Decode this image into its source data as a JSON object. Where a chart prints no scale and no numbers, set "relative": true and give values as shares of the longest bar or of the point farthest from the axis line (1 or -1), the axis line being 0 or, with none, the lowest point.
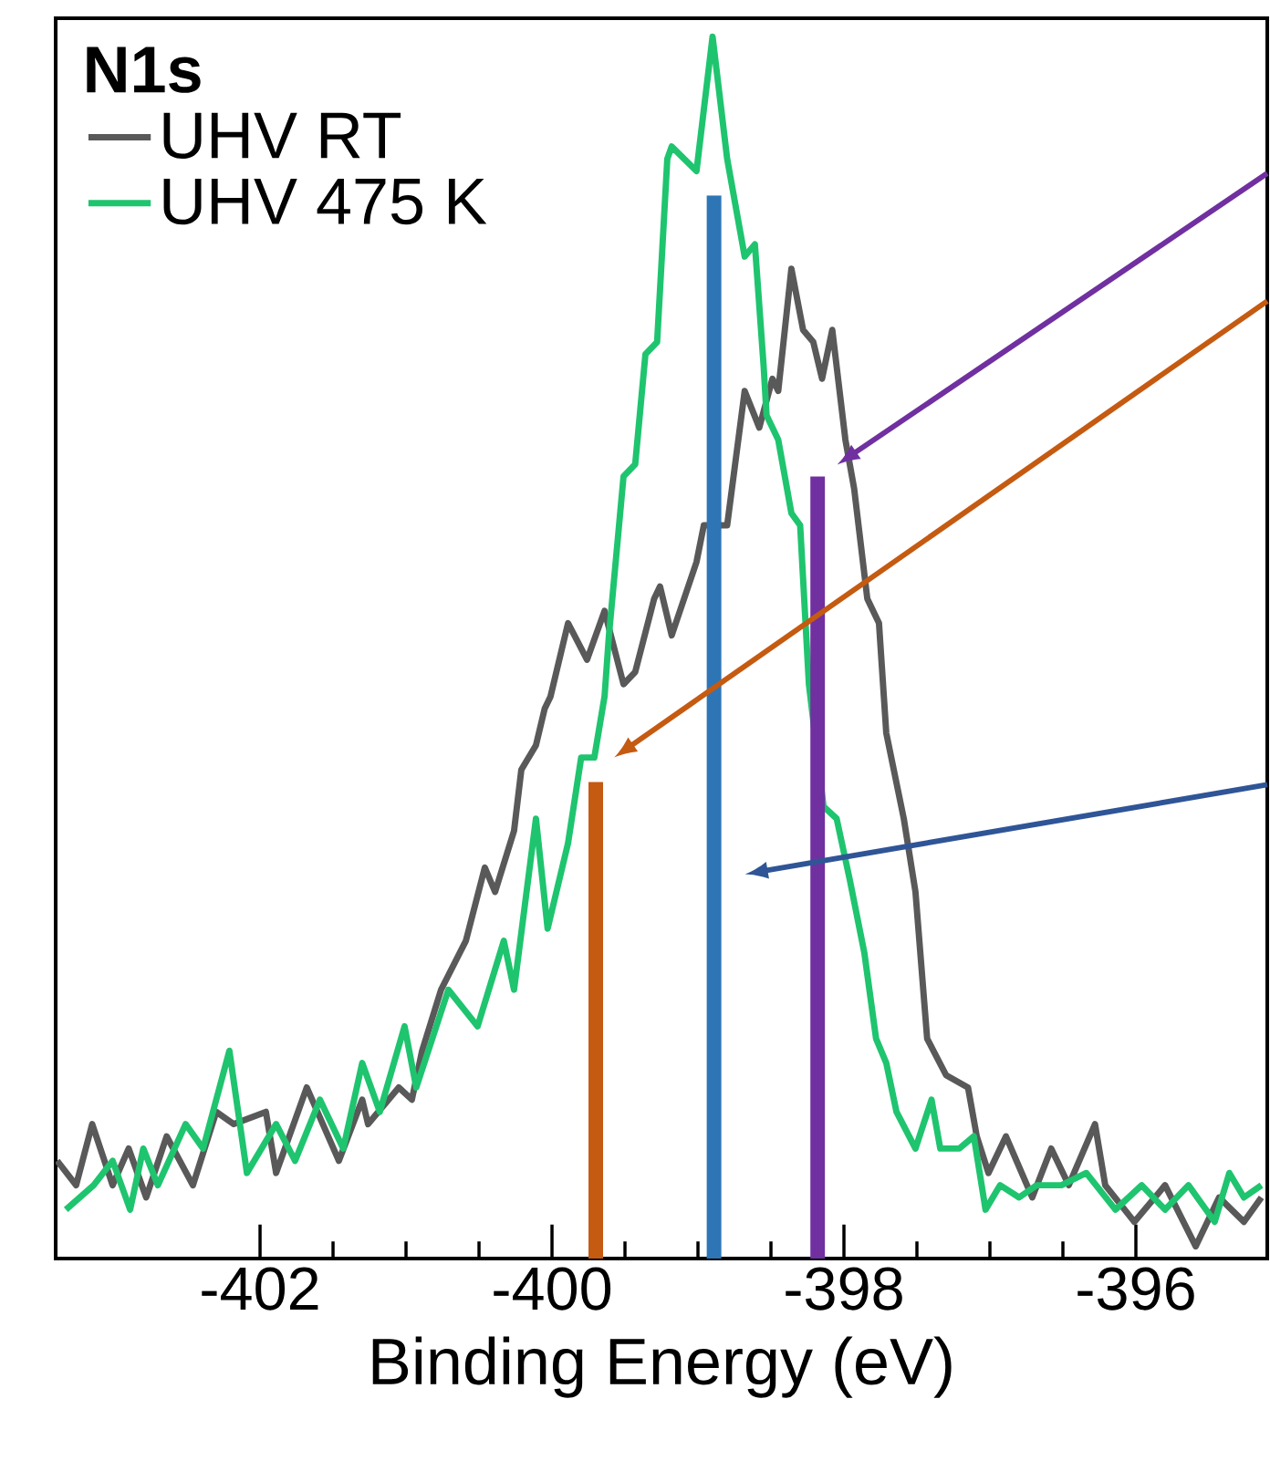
{
  "chart_data": {
    "type": "line",
    "relative": true,
    "xlabel": "Binding Energy (eV)",
    "legend_title": "N1s",
    "legend": "top left",
    "xlim": [
      -403.4,
      -395.1
    ],
    "xticks": [
      -402,
      -400,
      -398,
      -396
    ],
    "series": [
      {
        "name": "UHV RT",
        "color": "#595959",
        "x": [
          -403.39,
          -403.26,
          -403.15,
          -403.01,
          -402.9,
          -402.78,
          -402.64,
          -402.46,
          -402.3,
          -402.18,
          -401.96,
          -401.89,
          -401.68,
          -401.46,
          -401.3,
          -401.26,
          -401.05,
          -400.96,
          -400.89,
          -400.76,
          -400.59,
          -400.46,
          -400.39,
          -400.26,
          -400.21,
          -400.11,
          -400.05,
          -400.01,
          -399.89,
          -399.76,
          -399.64,
          -399.51,
          -399.43,
          -399.3,
          -399.26,
          -399.18,
          -399.01,
          -398.96,
          -398.8,
          -398.68,
          -398.58,
          -398.49,
          -398.45,
          -398.36,
          -398.28,
          -398.21,
          -398.15,
          -398.08,
          -397.99,
          -397.93,
          -397.84,
          -397.76,
          -397.71,
          -397.59,
          -397.51,
          -397.43,
          -397.3,
          -397.15,
          -397.09,
          -397.01,
          -396.89,
          -396.71,
          -396.58,
          -396.46,
          -396.28,
          -396.21,
          -396.01,
          -395.8,
          -395.59,
          -395.43,
          -395.26,
          -395.14
        ],
        "values": [
          0.08,
          0.06,
          0.11,
          0.06,
          0.09,
          0.05,
          0.1,
          0.06,
          0.12,
          0.11,
          0.12,
          0.07,
          0.14,
          0.08,
          0.13,
          0.11,
          0.14,
          0.13,
          0.17,
          0.22,
          0.26,
          0.32,
          0.3,
          0.35,
          0.4,
          0.42,
          0.45,
          0.46,
          0.52,
          0.49,
          0.53,
          0.47,
          0.48,
          0.54,
          0.55,
          0.51,
          0.57,
          0.6,
          0.6,
          0.71,
          0.68,
          0.72,
          0.71,
          0.81,
          0.76,
          0.75,
          0.72,
          0.76,
          0.67,
          0.63,
          0.54,
          0.52,
          0.43,
          0.36,
          0.3,
          0.18,
          0.15,
          0.14,
          0.1,
          0.07,
          0.1,
          0.05,
          0.09,
          0.06,
          0.11,
          0.06,
          0.03,
          0.06,
          0.01,
          0.05,
          0.03,
          0.05
        ]
      },
      {
        "name": "UHV 475 K",
        "color": "#1fc46f",
        "x": [
          -403.33,
          -403.14,
          -403.01,
          -402.89,
          -402.8,
          -402.7,
          -402.51,
          -402.39,
          -402.21,
          -402.09,
          -401.89,
          -401.76,
          -401.59,
          -401.43,
          -401.3,
          -401.18,
          -401.01,
          -400.93,
          -400.71,
          -400.51,
          -400.33,
          -400.26,
          -400.11,
          -400.03,
          -399.89,
          -399.8,
          -399.71,
          -399.64,
          -399.61,
          -399.51,
          -399.43,
          -399.36,
          -399.28,
          -399.21,
          -399.18,
          -399.01,
          -398.9,
          -398.8,
          -398.68,
          -398.61,
          -398.55,
          -398.53,
          -398.45,
          -398.36,
          -398.3,
          -398.24,
          -398.14,
          -398.05,
          -397.96,
          -397.86,
          -397.78,
          -397.71,
          -397.64,
          -397.51,
          -397.4,
          -397.34,
          -397.21,
          -397.11,
          -397.03,
          -396.93,
          -396.8,
          -396.68,
          -396.51,
          -396.34,
          -396.14,
          -395.96,
          -395.8,
          -395.64,
          -395.46,
          -395.36,
          -395.26,
          -395.14
        ],
        "values": [
          0.04,
          0.06,
          0.08,
          0.04,
          0.09,
          0.06,
          0.11,
          0.09,
          0.17,
          0.07,
          0.11,
          0.08,
          0.13,
          0.09,
          0.16,
          0.12,
          0.19,
          0.14,
          0.22,
          0.19,
          0.26,
          0.22,
          0.36,
          0.27,
          0.34,
          0.41,
          0.41,
          0.46,
          0.51,
          0.64,
          0.65,
          0.74,
          0.75,
          0.9,
          0.91,
          0.89,
          1.0,
          0.9,
          0.82,
          0.83,
          0.73,
          0.69,
          0.67,
          0.61,
          0.6,
          0.47,
          0.37,
          0.36,
          0.31,
          0.25,
          0.18,
          0.16,
          0.12,
          0.09,
          0.13,
          0.09,
          0.09,
          0.1,
          0.04,
          0.06,
          0.05,
          0.06,
          0.06,
          0.07,
          0.04,
          0.06,
          0.04,
          0.06,
          0.03,
          0.07,
          0.05,
          0.06
        ]
      },
      {
        "type": "bar",
        "color": "#c55a11",
        "x": [
          -399.7
        ],
        "values": [
          0.39
        ]
      },
      {
        "type": "bar",
        "color": "#2e75b6",
        "x": [
          -398.89
        ],
        "values": [
          0.87
        ]
      },
      {
        "type": "bar",
        "color": "#7030a0",
        "x": [
          -398.18
        ],
        "values": [
          0.64
        ]
      }
    ]
  }
}
